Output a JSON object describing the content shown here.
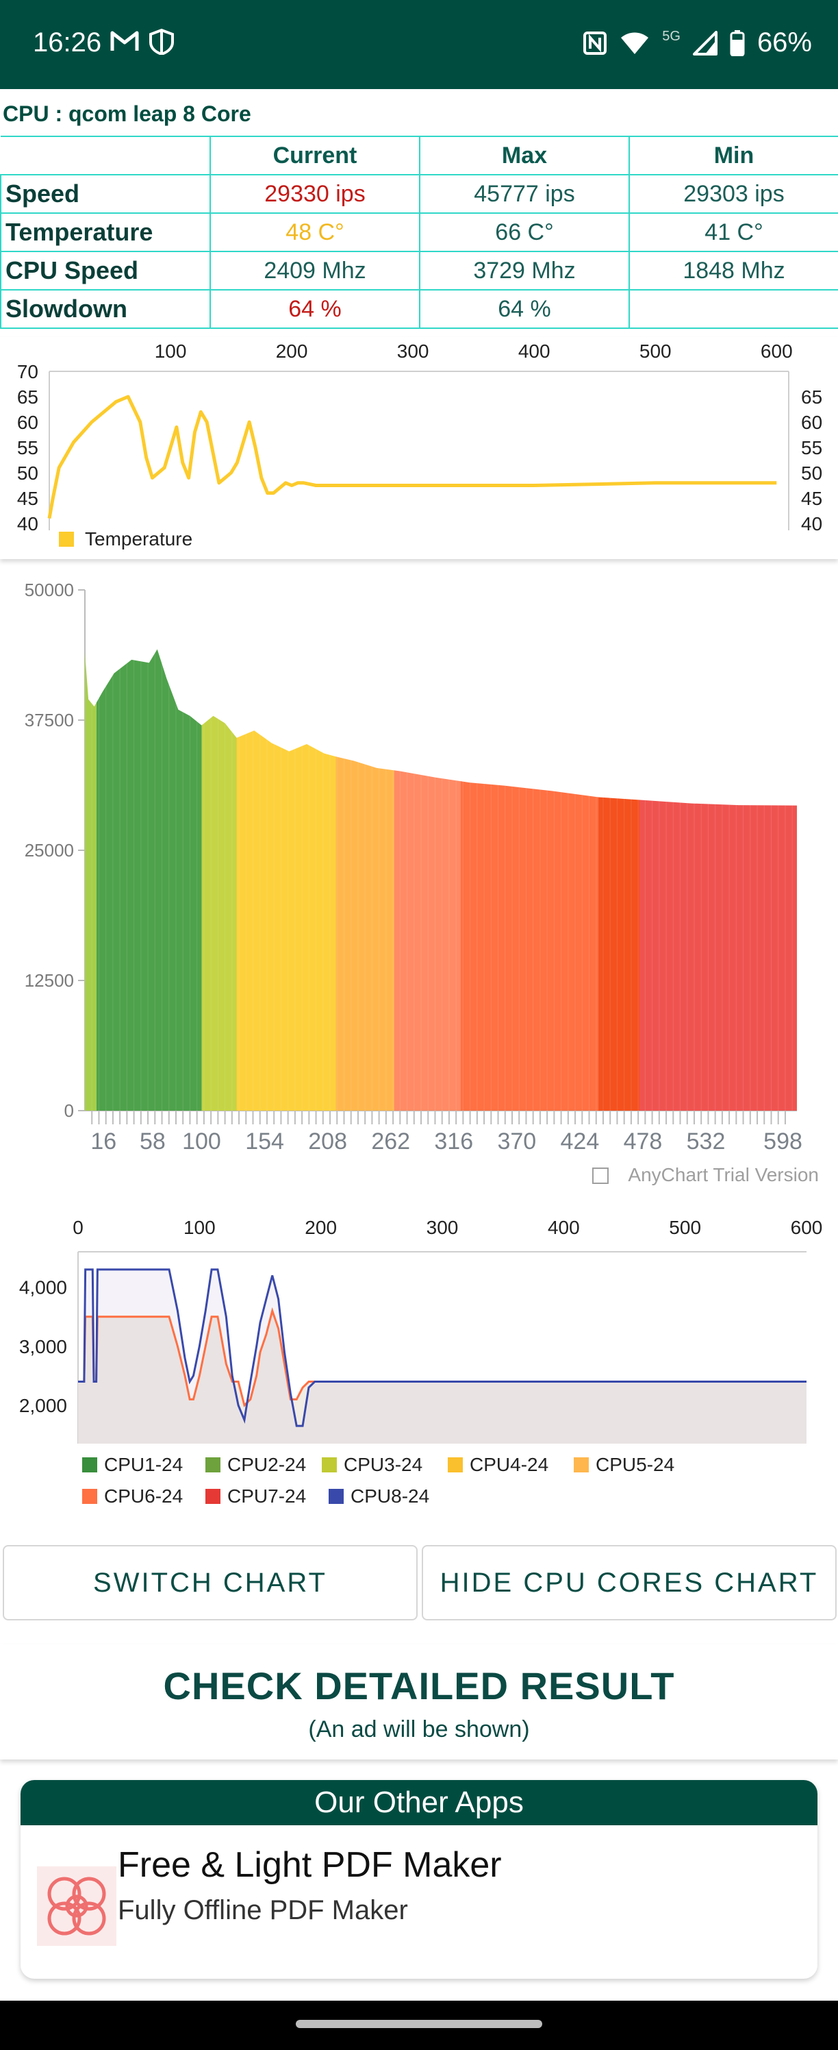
{
  "status_bar": {
    "time": "16:26",
    "network": "5G",
    "battery": "66%",
    "icons": [
      "gmail-icon",
      "shield-icon",
      "nfc-icon",
      "wifi-icon",
      "signal-icon",
      "battery-icon"
    ]
  },
  "cpu_title": "CPU : qcom leap 8 Core",
  "stats": {
    "headers": [
      "Current",
      "Max",
      "Min"
    ],
    "rows": [
      {
        "label": "Speed",
        "current": "29330 ips",
        "max": "45777 ips",
        "min": "29303 ips"
      },
      {
        "label": "Temperature",
        "current": "48 C°",
        "max": "66 C°",
        "min": "41 C°"
      },
      {
        "label": "CPU Speed",
        "current": "2409 Mhz",
        "max": "3729 Mhz",
        "min": "1848 Mhz"
      },
      {
        "label": "Slowdown",
        "current": "64 %",
        "max": "64 %",
        "min": ""
      }
    ],
    "colors": {
      "red": "#c21b17",
      "yellow": "#f2b81f",
      "border": "#2fd8c8"
    }
  },
  "chart_data": [
    {
      "type": "line",
      "x_top_ticks": [
        "100",
        "200",
        "300",
        "400",
        "500",
        "600"
      ],
      "y_left_ticks": [
        "70",
        "65",
        "60",
        "55",
        "50",
        "45",
        "40"
      ],
      "y_right_ticks": [
        "65",
        "60",
        "55",
        "50",
        "45",
        "40"
      ],
      "xlim": [
        0,
        610
      ],
      "ylim": [
        40,
        70
      ],
      "grid": false,
      "legend_position": "bottom-left",
      "series": [
        {
          "name": "Temperature",
          "color": "#fccb2c",
          "x": [
            0,
            3,
            8,
            20,
            35,
            55,
            65,
            75,
            80,
            85,
            95,
            105,
            110,
            115,
            120,
            125,
            130,
            135,
            140,
            145,
            150,
            155,
            160,
            165,
            170,
            175,
            180,
            185,
            190,
            195,
            200,
            205,
            210,
            220,
            300,
            400,
            500,
            600
          ],
          "y": [
            41,
            45,
            51,
            56,
            60,
            64,
            65,
            60,
            53,
            49,
            51,
            59,
            52,
            49,
            58,
            62,
            60,
            54,
            48,
            49,
            50,
            52,
            56,
            60,
            55,
            49,
            46,
            46,
            47,
            48,
            47.5,
            48,
            48,
            47.5,
            47.5,
            47.5,
            48,
            48
          ]
        }
      ]
    },
    {
      "type": "area",
      "x_ticks": [
        "16",
        "58",
        "100",
        "154",
        "208",
        "262",
        "316",
        "370",
        "424",
        "478",
        "532",
        "598"
      ],
      "y_ticks": [
        "50000",
        "37500",
        "25000",
        "12500",
        "0"
      ],
      "xlim": [
        0,
        610
      ],
      "ylim": [
        0,
        50000
      ],
      "watermark": "AnyChart Trial Version",
      "segments": [
        {
          "x0": 0,
          "x1": 10,
          "color": "#a7cf4a"
        },
        {
          "x0": 10,
          "x1": 100,
          "color": "#4ea24b"
        },
        {
          "x0": 100,
          "x1": 130,
          "color": "#c4d445"
        },
        {
          "x0": 130,
          "x1": 215,
          "color": "#fdd13c"
        },
        {
          "x0": 215,
          "x1": 265,
          "color": "#ffb74d"
        },
        {
          "x0": 265,
          "x1": 322,
          "color": "#ff8a65"
        },
        {
          "x0": 322,
          "x1": 440,
          "color": "#ff7043"
        },
        {
          "x0": 440,
          "x1": 475,
          "color": "#f4511e"
        },
        {
          "x0": 475,
          "x1": 610,
          "color": "#ef5350"
        }
      ],
      "series": [
        {
          "x": [
            0,
            3,
            8,
            15,
            25,
            40,
            55,
            62,
            70,
            80,
            90,
            100,
            110,
            120,
            130,
            145,
            160,
            175,
            190,
            205,
            215,
            230,
            250,
            270,
            300,
            330,
            360,
            400,
            440,
            480,
            520,
            560,
            610
          ],
          "y": [
            44000,
            39500,
            38800,
            40200,
            42000,
            43300,
            43000,
            44300,
            41500,
            38500,
            37900,
            37000,
            37900,
            37200,
            35800,
            36500,
            35300,
            34500,
            35200,
            34300,
            34000,
            33600,
            32900,
            32600,
            32000,
            31500,
            31200,
            30700,
            30100,
            29800,
            29500,
            29330,
            29300
          ]
        }
      ]
    },
    {
      "type": "line",
      "x_top_ticks": [
        "0",
        "100",
        "200",
        "300",
        "400",
        "500",
        "600"
      ],
      "y_ticks": [
        "4,000",
        "3,000",
        "2,000"
      ],
      "xlim": [
        0,
        600
      ],
      "ylim": [
        1350,
        4600
      ],
      "legend_position": "bottom",
      "legend": [
        {
          "name": "CPU1-24",
          "color": "#388e3c"
        },
        {
          "name": "CPU2-24",
          "color": "#6ea23c"
        },
        {
          "name": "CPU3-24",
          "color": "#c0ca33"
        },
        {
          "name": "CPU4-24",
          "color": "#fbc02d"
        },
        {
          "name": "CPU5-24",
          "color": "#ffb74d"
        },
        {
          "name": "CPU6-24",
          "color": "#ff7043"
        },
        {
          "name": "CPU7-24",
          "color": "#e53935"
        },
        {
          "name": "CPU8-24",
          "color": "#3949ab"
        }
      ],
      "series": [
        {
          "name": "CPU6-24",
          "color": "#ff7043",
          "x": [
            0,
            5,
            6,
            12,
            13,
            15,
            16,
            75,
            82,
            88,
            92,
            95,
            100,
            105,
            110,
            115,
            122,
            127,
            132,
            137,
            142,
            147,
            150,
            155,
            160,
            165,
            170,
            175,
            180,
            185,
            190,
            195,
            200,
            600
          ],
          "y": [
            2400,
            2400,
            3500,
            3500,
            2400,
            2400,
            3500,
            3500,
            3000,
            2500,
            2100,
            2100,
            2500,
            3000,
            3500,
            3500,
            2700,
            2400,
            2400,
            2000,
            2100,
            2500,
            2900,
            3200,
            3600,
            3300,
            2700,
            2100,
            2100,
            2300,
            2400,
            2400,
            2400,
            2400
          ]
        },
        {
          "name": "CPU8-24",
          "color": "#3949ab",
          "x": [
            0,
            5,
            6,
            12,
            13,
            15,
            16,
            75,
            82,
            88,
            92,
            95,
            100,
            105,
            110,
            115,
            122,
            127,
            132,
            137,
            142,
            147,
            150,
            155,
            160,
            165,
            170,
            175,
            180,
            185,
            190,
            195,
            200,
            600
          ],
          "y": [
            2400,
            2400,
            4300,
            4300,
            2400,
            2400,
            4300,
            4300,
            3600,
            2800,
            2400,
            2500,
            3000,
            3600,
            4300,
            4300,
            3500,
            2500,
            2000,
            1750,
            2400,
            3000,
            3400,
            3800,
            4200,
            3800,
            2900,
            2200,
            1650,
            1650,
            2300,
            2400,
            2400,
            2400
          ]
        }
      ]
    }
  ],
  "buttons": {
    "switch_chart": "SWITCH CHART",
    "hide_cores": "HIDE CPU CORES CHART"
  },
  "check_result": {
    "title": "CHECK DETAILED RESULT",
    "subtitle": "(An ad will be shown)"
  },
  "other_apps": {
    "header": "Our Other Apps",
    "app_title": "Free & Light PDF Maker",
    "app_subtitle": "Fully Offline PDF Maker"
  },
  "theme": {
    "primary": "#004d40",
    "accent": "#2fd8c8"
  }
}
